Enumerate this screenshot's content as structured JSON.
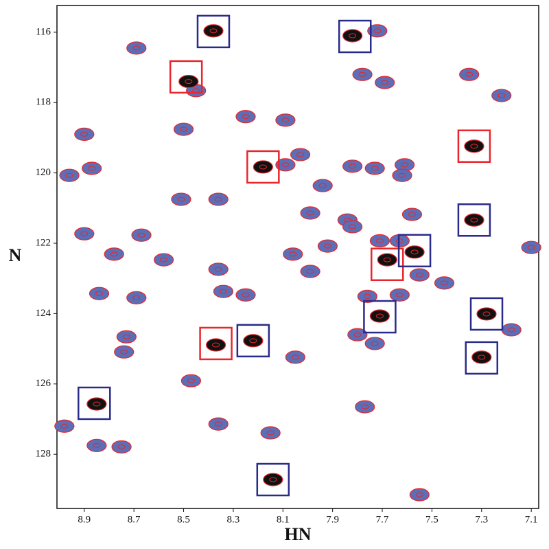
{
  "chart_data": {
    "type": "scatter",
    "x_label": "HN",
    "y_label": "N",
    "xlim": [
      9.01,
      7.07
    ],
    "ylim": [
      115.24,
      129.54
    ],
    "xticks": [
      8.9,
      8.7,
      8.5,
      8.3,
      8.1,
      7.9,
      7.7,
      7.5,
      7.3,
      7.1
    ],
    "yticks": [
      116,
      118,
      120,
      122,
      124,
      126,
      128
    ],
    "series": [
      {
        "color": "#5a6fb8",
        "x": [
          8.69,
          7.72,
          7.78,
          7.69,
          7.35,
          7.22,
          8.45,
          8.5,
          8.25,
          8.09,
          8.9,
          8.96,
          8.87,
          8.03,
          8.09,
          7.94,
          7.82,
          7.73,
          7.61,
          7.62,
          8.51,
          8.36,
          7.99,
          7.84,
          7.82,
          7.58,
          8.9,
          8.67,
          8.78,
          8.58,
          8.06,
          7.92,
          7.99,
          7.71,
          7.63,
          7.55,
          7.45,
          7.1,
          8.36,
          8.84,
          8.34,
          8.25,
          7.63,
          7.76,
          8.69,
          8.73,
          8.74,
          7.8,
          7.73,
          8.05,
          7.18,
          8.47,
          7.77,
          8.36,
          8.15,
          8.98,
          8.85,
          8.75,
          7.55
        ],
        "values": [
          116.45,
          115.96,
          117.2,
          117.43,
          117.2,
          117.8,
          117.66,
          118.76,
          118.4,
          118.5,
          118.9,
          120.07,
          119.87,
          119.48,
          119.77,
          120.36,
          119.81,
          119.87,
          119.77,
          120.07,
          120.75,
          120.75,
          121.14,
          121.34,
          121.53,
          121.18,
          121.73,
          121.77,
          122.31,
          122.47,
          122.31,
          122.08,
          122.8,
          121.93,
          121.93,
          122.9,
          123.13,
          122.12,
          122.74,
          123.43,
          123.37,
          123.47,
          123.47,
          123.51,
          123.55,
          124.66,
          125.09,
          124.6,
          124.85,
          125.24,
          124.46,
          125.91,
          126.65,
          127.14,
          127.39,
          127.2,
          127.75,
          127.79,
          129.15
        ]
      },
      {
        "color": "#111111",
        "x": [
          8.48,
          8.18,
          7.33,
          7.68,
          8.37,
          8.38,
          7.82,
          7.57,
          7.33,
          7.71,
          7.28,
          7.3,
          8.22,
          8.85,
          8.14
        ],
        "values": [
          117.4,
          119.83,
          119.24,
          122.47,
          124.89,
          115.96,
          116.1,
          122.25,
          121.34,
          124.07,
          124.01,
          125.24,
          124.77,
          126.57,
          128.72
        ]
      }
    ],
    "boxes": [
      {
        "color": "#e8262b",
        "x": [
          8.49,
          8.18,
          7.33,
          7.68,
          8.37
        ],
        "values": [
          117.27,
          119.83,
          119.24,
          122.6,
          124.85
        ]
      },
      {
        "color": "#2a2a8a",
        "x": [
          8.38,
          7.81,
          7.57,
          7.33,
          7.71,
          7.28,
          7.3,
          8.22,
          8.86,
          8.14
        ],
        "values": [
          115.98,
          116.12,
          122.21,
          121.34,
          124.09,
          124.01,
          125.26,
          124.77,
          126.55,
          128.72
        ]
      }
    ],
    "peak_outline_color": "#e8262b"
  }
}
